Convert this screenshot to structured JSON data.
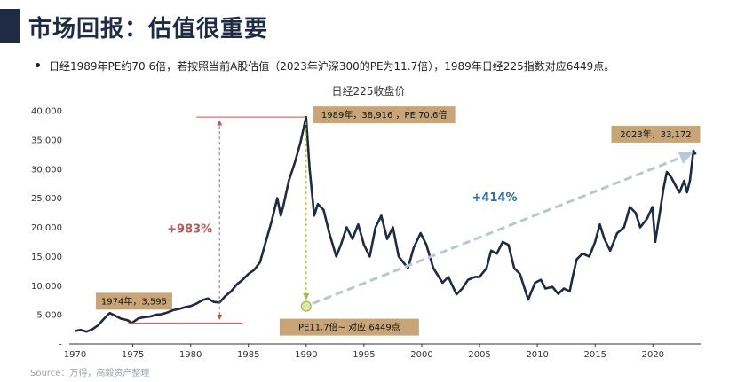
{
  "header": {
    "title": "市场回报：估值很重要",
    "bullet": "日经1989年PE约70.6倍，若按照当前A股估值（2023年沪深300的PE为11.7倍），1989年日经225指数对应6449点。"
  },
  "source": "Source：万得，高毅资产整理",
  "colors": {
    "line": "#1f2a44",
    "label_box": "#c8a578",
    "up_text": "#b55a5a",
    "blue_text": "#2e6da4",
    "dash": "#b8c6d6"
  },
  "chart_data": {
    "type": "line",
    "title": "日经225收盘价",
    "xlim": [
      1969.5,
      2024.2
    ],
    "ylim": [
      0,
      40000
    ],
    "x_ticks": [
      "1970",
      "1975",
      "1980",
      "1985",
      "1990",
      "1995",
      "2000",
      "2005",
      "2010",
      "2015",
      "2020"
    ],
    "y_ticks": [
      "-",
      "5,000",
      "10,000",
      "15,000",
      "20,000",
      "25,000",
      "30,000",
      "35,000",
      "40,000"
    ],
    "grid": false,
    "series": [
      {
        "points": [
          [
            1970.0,
            2200
          ],
          [
            1970.5,
            2400
          ],
          [
            1971.0,
            2100
          ],
          [
            1971.5,
            2500
          ],
          [
            1972.0,
            3200
          ],
          [
            1972.5,
            4300
          ],
          [
            1973.0,
            5300
          ],
          [
            1973.5,
            4800
          ],
          [
            1974.0,
            4300
          ],
          [
            1974.5,
            4100
          ],
          [
            1974.9,
            3595
          ],
          [
            1975.5,
            4400
          ],
          [
            1976.0,
            4600
          ],
          [
            1976.5,
            4700
          ],
          [
            1977.0,
            5000
          ],
          [
            1977.5,
            5100
          ],
          [
            1978.0,
            5400
          ],
          [
            1978.5,
            5800
          ],
          [
            1979.0,
            6000
          ],
          [
            1979.5,
            6300
          ],
          [
            1980.0,
            6500
          ],
          [
            1980.5,
            6900
          ],
          [
            1981.0,
            7500
          ],
          [
            1981.5,
            7800
          ],
          [
            1982.0,
            7200
          ],
          [
            1982.5,
            7100
          ],
          [
            1983.0,
            8200
          ],
          [
            1983.5,
            9000
          ],
          [
            1984.0,
            10200
          ],
          [
            1984.5,
            11000
          ],
          [
            1985.0,
            12000
          ],
          [
            1985.5,
            12700
          ],
          [
            1986.0,
            14000
          ],
          [
            1986.5,
            17500
          ],
          [
            1987.0,
            21000
          ],
          [
            1987.5,
            25000
          ],
          [
            1987.8,
            22000
          ],
          [
            1988.0,
            23500
          ],
          [
            1988.5,
            28000
          ],
          [
            1989.0,
            31000
          ],
          [
            1989.5,
            34500
          ],
          [
            1989.99,
            38916
          ],
          [
            1990.3,
            30000
          ],
          [
            1990.7,
            22000
          ],
          [
            1991.0,
            24000
          ],
          [
            1991.5,
            23000
          ],
          [
            1992.0,
            19000
          ],
          [
            1992.6,
            15000
          ],
          [
            1993.0,
            17000
          ],
          [
            1993.5,
            20000
          ],
          [
            1994.0,
            18000
          ],
          [
            1994.5,
            20500
          ],
          [
            1995.0,
            17000
          ],
          [
            1995.5,
            15000
          ],
          [
            1996.0,
            20000
          ],
          [
            1996.5,
            22000
          ],
          [
            1997.0,
            18000
          ],
          [
            1997.5,
            20000
          ],
          [
            1998.0,
            15000
          ],
          [
            1998.8,
            13000
          ],
          [
            1999.3,
            16500
          ],
          [
            1999.9,
            19000
          ],
          [
            2000.4,
            17000
          ],
          [
            2001.0,
            13000
          ],
          [
            2001.8,
            10500
          ],
          [
            2002.3,
            11500
          ],
          [
            2003.0,
            8500
          ],
          [
            2003.5,
            9500
          ],
          [
            2004.0,
            11000
          ],
          [
            2004.6,
            11500
          ],
          [
            2005.0,
            11500
          ],
          [
            2005.6,
            13000
          ],
          [
            2006.0,
            16000
          ],
          [
            2006.5,
            15500
          ],
          [
            2007.0,
            17500
          ],
          [
            2007.5,
            17000
          ],
          [
            2008.0,
            13000
          ],
          [
            2008.5,
            12000
          ],
          [
            2009.2,
            7600
          ],
          [
            2009.8,
            10500
          ],
          [
            2010.3,
            11000
          ],
          [
            2010.7,
            9500
          ],
          [
            2011.3,
            9800
          ],
          [
            2011.8,
            8600
          ],
          [
            2012.3,
            9500
          ],
          [
            2012.8,
            9000
          ],
          [
            2013.0,
            11000
          ],
          [
            2013.4,
            14500
          ],
          [
            2013.9,
            15500
          ],
          [
            2014.5,
            15000
          ],
          [
            2015.0,
            17500
          ],
          [
            2015.4,
            20500
          ],
          [
            2015.8,
            18000
          ],
          [
            2016.3,
            16000
          ],
          [
            2016.9,
            19000
          ],
          [
            2017.5,
            20000
          ],
          [
            2018.0,
            23500
          ],
          [
            2018.5,
            22500
          ],
          [
            2018.9,
            20000
          ],
          [
            2019.5,
            21500
          ],
          [
            2019.95,
            23500
          ],
          [
            2020.2,
            17500
          ],
          [
            2020.6,
            22500
          ],
          [
            2020.9,
            26500
          ],
          [
            2021.2,
            29500
          ],
          [
            2021.6,
            28500
          ],
          [
            2022.0,
            27000
          ],
          [
            2022.3,
            26000
          ],
          [
            2022.7,
            28000
          ],
          [
            2022.95,
            26000
          ],
          [
            2023.2,
            28000
          ],
          [
            2023.5,
            33172
          ],
          [
            2023.7,
            32500
          ]
        ]
      }
    ],
    "annotations": {
      "box_1974": "1974年，3,595",
      "box_1989": "1989年，38,916  ，PE 70.6倍",
      "box_2023": "2023年，33,172",
      "box_pe": "PE11.7倍~ 对应 6449点",
      "up_pct": "+983%",
      "blue_pct": "+414%",
      "point_1974": [
        1974.9,
        3595
      ],
      "point_1989": [
        1989.99,
        38916
      ],
      "point_2023": [
        2023.5,
        33172
      ],
      "point_pe": [
        1990.0,
        6449
      ]
    }
  }
}
